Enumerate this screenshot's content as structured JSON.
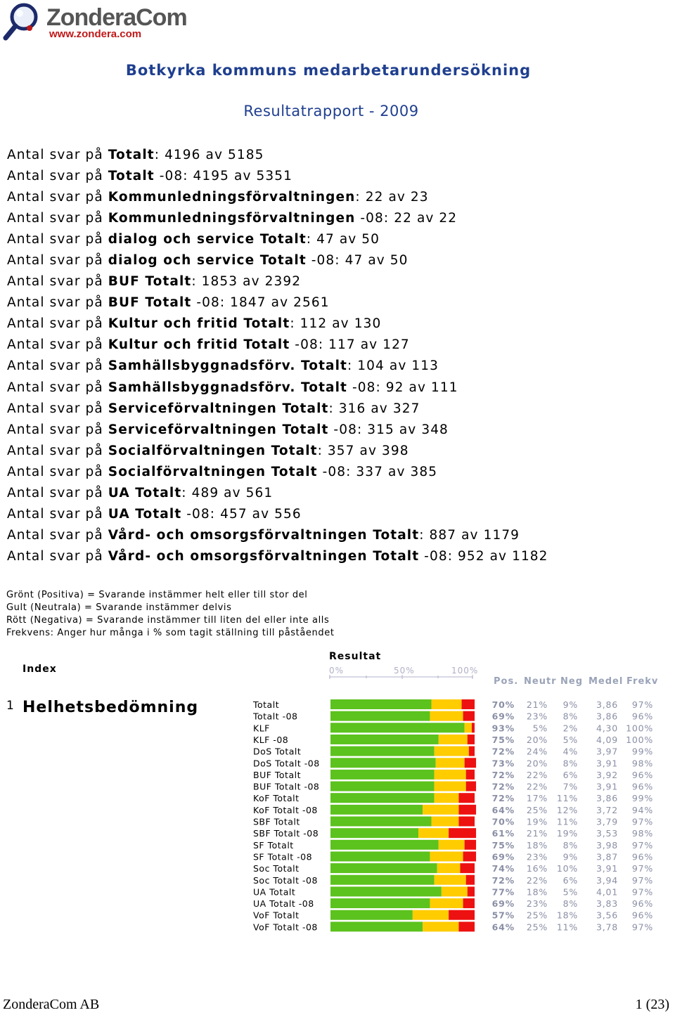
{
  "logo": {
    "name": "ZonderaCom",
    "url": "www.zondera.com"
  },
  "title": "Botkyrka kommuns medarbetarundersökning",
  "subtitle": "Resultatrapport - 2009",
  "responses": [
    {
      "prefix": "Antal svar på ",
      "bold": "Totalt",
      "suffix": ": 4196 av 5185"
    },
    {
      "prefix": "Antal svar på ",
      "bold": "Totalt",
      "suffix": " -08: 4195 av 5351"
    },
    {
      "prefix": "Antal svar på ",
      "bold": "Kommunledningsförvaltningen",
      "suffix": ": 22 av 23"
    },
    {
      "prefix": "Antal svar på ",
      "bold": "Kommunledningsförvaltningen",
      "suffix": " -08: 22 av 22"
    },
    {
      "prefix": "Antal svar på ",
      "bold": "dialog och service Totalt",
      "suffix": ": 47 av 50"
    },
    {
      "prefix": "Antal svar på ",
      "bold": "dialog och service Totalt",
      "suffix": " -08: 47 av 50"
    },
    {
      "prefix": "Antal svar på ",
      "bold": "BUF Totalt",
      "suffix": ": 1853 av 2392"
    },
    {
      "prefix": "Antal svar på ",
      "bold": "BUF Totalt",
      "suffix": " -08: 1847 av 2561"
    },
    {
      "prefix": "Antal svar på ",
      "bold": "Kultur och fritid Totalt",
      "suffix": ": 112 av 130"
    },
    {
      "prefix": "Antal svar på ",
      "bold": "Kultur och fritid Totalt",
      "suffix": " -08: 117 av 127"
    },
    {
      "prefix": "Antal svar på ",
      "bold": "Samhällsbyggnadsförv. Totalt",
      "suffix": ": 104 av 113"
    },
    {
      "prefix": "Antal svar på ",
      "bold": "Samhällsbyggnadsförv. Totalt",
      "suffix": " -08: 92 av 111"
    },
    {
      "prefix": "Antal svar på ",
      "bold": "Serviceförvaltningen Totalt",
      "suffix": ": 316 av 327"
    },
    {
      "prefix": "Antal svar på ",
      "bold": "Serviceförvaltningen Totalt",
      "suffix": " -08: 315 av 348"
    },
    {
      "prefix": "Antal svar på ",
      "bold": "Socialförvaltningen Totalt",
      "suffix": ": 357 av 398"
    },
    {
      "prefix": "Antal svar på ",
      "bold": "Socialförvaltningen Totalt",
      "suffix": " -08: 337 av 385"
    },
    {
      "prefix": "Antal svar på ",
      "bold": "UA Totalt",
      "suffix": ": 489 av 561"
    },
    {
      "prefix": "Antal svar på ",
      "bold": "UA Totalt",
      "suffix": " -08: 457 av 556"
    },
    {
      "prefix": "Antal svar på ",
      "bold": "Vård- och omsorgsförvaltningen Totalt",
      "suffix": ": 887 av 1179"
    },
    {
      "prefix": "Antal svar på ",
      "bold": "Vård- och omsorgsförvaltningen Totalt",
      "suffix": " -08: 952 av 1182"
    }
  ],
  "legend": {
    "green": "Grönt (Positiva) = Svarande instämmer helt eller till stor del",
    "yellow": "Gult (Neutrala) = Svarande instämmer delvis",
    "red": "Rött (Negativa) = Svarande instämmer till liten del eller inte alls",
    "freq": "Frekvens: Anger hur många i % som tagit ställning till påståendet"
  },
  "table_headers": {
    "index": "Index",
    "result": "Resultat",
    "scale": [
      "0%",
      "50%",
      "100%"
    ],
    "cols": [
      "Pos.",
      "Neutr",
      "Neg",
      "Medel",
      "Frekv"
    ]
  },
  "question": {
    "number": "1",
    "title": "Helhetsbedömning"
  },
  "colors": {
    "pos": "#5cc21e",
    "neutr": "#ffcc00",
    "neg": "#ee1111"
  },
  "chart_data": {
    "type": "bar",
    "stacked": true,
    "orientation": "horizontal",
    "categories": [
      "Totalt",
      "Totalt -08",
      "KLF",
      "KLF -08",
      "DoS Totalt",
      "DoS Totalt -08",
      "BUF Totalt",
      "BUF Totalt -08",
      "KoF Totalt",
      "KoF Totalt -08",
      "SBF Totalt",
      "SBF Totalt -08",
      "SF Totalt",
      "SF Totalt -08",
      "Soc Totalt",
      "Soc Totalt -08",
      "UA Totalt",
      "UA Totalt -08",
      "VoF Totalt",
      "VoF Totalt -08"
    ],
    "series": [
      {
        "name": "Pos.",
        "values": [
          70,
          69,
          93,
          75,
          72,
          73,
          72,
          72,
          72,
          64,
          70,
          61,
          75,
          69,
          74,
          72,
          77,
          69,
          57,
          64
        ]
      },
      {
        "name": "Neutr",
        "values": [
          21,
          23,
          5,
          20,
          24,
          20,
          22,
          22,
          17,
          25,
          19,
          21,
          18,
          23,
          16,
          22,
          18,
          23,
          25,
          25
        ]
      },
      {
        "name": "Neg",
        "values": [
          9,
          8,
          2,
          5,
          4,
          8,
          6,
          7,
          11,
          12,
          11,
          19,
          8,
          9,
          10,
          6,
          5,
          8,
          18,
          11
        ]
      }
    ],
    "medel": [
      "3,86",
      "3,86",
      "4,30",
      "4,09",
      "3,97",
      "3,91",
      "3,92",
      "3,91",
      "3,86",
      "3,72",
      "3,79",
      "3,53",
      "3,98",
      "3,87",
      "3,91",
      "3,94",
      "4,01",
      "3,83",
      "3,56",
      "3,78"
    ],
    "frekv": [
      "97%",
      "96%",
      "100%",
      "100%",
      "99%",
      "98%",
      "96%",
      "96%",
      "99%",
      "94%",
      "97%",
      "98%",
      "97%",
      "96%",
      "97%",
      "97%",
      "97%",
      "96%",
      "96%",
      "97%"
    ],
    "xlim": [
      0,
      100
    ]
  },
  "footer": {
    "company": "ZonderaCom AB",
    "page": "1 (23)"
  }
}
